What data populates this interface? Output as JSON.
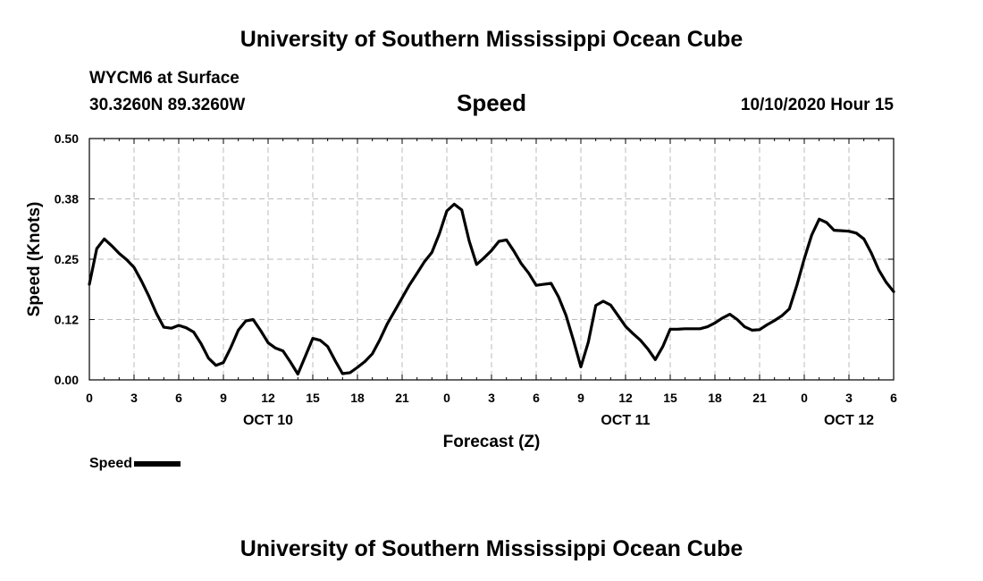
{
  "header": {
    "title_top": "University of Southern Mississippi Ocean Cube",
    "title_bottom": "University of Southern Mississippi Ocean Cube",
    "station": "WYCM6 at Surface",
    "coords": "30.3260N 89.3260W",
    "datetime": "10/10/2020 Hour 15"
  },
  "legend": {
    "label": "Speed"
  },
  "colors": {
    "line": "#000000",
    "grid": "#bbbbbb",
    "axis": "#000000"
  },
  "chart_data": {
    "type": "line",
    "title": "Speed",
    "xlabel": "Forecast (Z)",
    "ylabel": "Speed (Knots)",
    "x_unit": "hours from OCT 10 00Z",
    "xlim": [
      0,
      54
    ],
    "ylim": [
      0,
      0.5
    ],
    "grid": true,
    "legend_position": "bottom-left",
    "y_ticks": [
      {
        "value": 0,
        "label": "0.00"
      },
      {
        "value": 0.125,
        "label": "0.12"
      },
      {
        "value": 0.25,
        "label": "0.25"
      },
      {
        "value": 0.375,
        "label": "0.38"
      },
      {
        "value": 0.5,
        "label": "0.50"
      }
    ],
    "x_ticks": [
      {
        "value": 0,
        "label": "0"
      },
      {
        "value": 3,
        "label": "3"
      },
      {
        "value": 6,
        "label": "6"
      },
      {
        "value": 9,
        "label": "9"
      },
      {
        "value": 12,
        "label": "12"
      },
      {
        "value": 15,
        "label": "15"
      },
      {
        "value": 18,
        "label": "18"
      },
      {
        "value": 21,
        "label": "21"
      },
      {
        "value": 24,
        "label": "0"
      },
      {
        "value": 27,
        "label": "3"
      },
      {
        "value": 30,
        "label": "6"
      },
      {
        "value": 33,
        "label": "9"
      },
      {
        "value": 36,
        "label": "12"
      },
      {
        "value": 39,
        "label": "15"
      },
      {
        "value": 42,
        "label": "18"
      },
      {
        "value": 45,
        "label": "21"
      },
      {
        "value": 48,
        "label": "0"
      },
      {
        "value": 51,
        "label": "3"
      },
      {
        "value": 54,
        "label": "6"
      }
    ],
    "date_labels": [
      {
        "value": 12,
        "label": "OCT 10"
      },
      {
        "value": 36,
        "label": "OCT 11"
      },
      {
        "value": 51,
        "label": "OCT 12"
      }
    ],
    "series": [
      {
        "name": "Speed",
        "x": [
          0,
          0.5,
          1,
          1.5,
          2,
          2.5,
          3,
          3.5,
          4,
          4.5,
          5,
          5.5,
          6,
          6.5,
          7,
          7.5,
          8,
          8.5,
          9,
          9.5,
          10,
          10.5,
          11,
          11.5,
          12,
          12.5,
          13,
          13.5,
          14,
          14.5,
          15,
          15.5,
          16,
          16.5,
          17,
          17.5,
          18,
          18.5,
          19,
          19.5,
          20,
          20.5,
          21,
          21.5,
          22,
          22.5,
          23,
          23.5,
          24,
          24.5,
          25,
          25.5,
          26,
          26.5,
          27,
          27.5,
          28,
          28.5,
          29,
          29.5,
          30,
          30.5,
          31,
          31.5,
          32,
          32.5,
          33,
          33.5,
          34,
          34.5,
          35,
          35.5,
          36,
          36.5,
          37,
          37.5,
          38,
          38.5,
          39,
          39.5,
          40,
          40.5,
          41,
          41.5,
          42,
          42.5,
          43,
          43.5,
          44,
          44.5,
          45,
          45.5,
          46,
          46.5,
          47,
          47.5,
          48,
          48.5,
          49,
          49.5,
          50,
          50.5,
          51,
          51.5,
          52,
          52.5,
          53,
          53.5,
          54
        ],
        "y": [
          0.198,
          0.272,
          0.292,
          0.278,
          0.262,
          0.249,
          0.233,
          0.205,
          0.173,
          0.138,
          0.109,
          0.107,
          0.113,
          0.108,
          0.099,
          0.075,
          0.045,
          0.03,
          0.036,
          0.067,
          0.103,
          0.122,
          0.125,
          0.102,
          0.077,
          0.066,
          0.06,
          0.037,
          0.012,
          0.049,
          0.086,
          0.082,
          0.069,
          0.04,
          0.013,
          0.015,
          0.026,
          0.038,
          0.054,
          0.083,
          0.116,
          0.143,
          0.17,
          0.197,
          0.221,
          0.245,
          0.264,
          0.303,
          0.35,
          0.364,
          0.352,
          0.288,
          0.239,
          0.253,
          0.268,
          0.287,
          0.29,
          0.267,
          0.241,
          0.221,
          0.196,
          0.198,
          0.2,
          0.172,
          0.134,
          0.082,
          0.027,
          0.078,
          0.154,
          0.163,
          0.155,
          0.133,
          0.111,
          0.096,
          0.082,
          0.064,
          0.042,
          0.069,
          0.105,
          0.105,
          0.106,
          0.106,
          0.106,
          0.11,
          0.118,
          0.128,
          0.136,
          0.125,
          0.11,
          0.103,
          0.104,
          0.114,
          0.123,
          0.133,
          0.147,
          0.196,
          0.251,
          0.3,
          0.333,
          0.326,
          0.31,
          0.309,
          0.308,
          0.304,
          0.292,
          0.263,
          0.228,
          0.202,
          0.183
        ]
      }
    ]
  }
}
